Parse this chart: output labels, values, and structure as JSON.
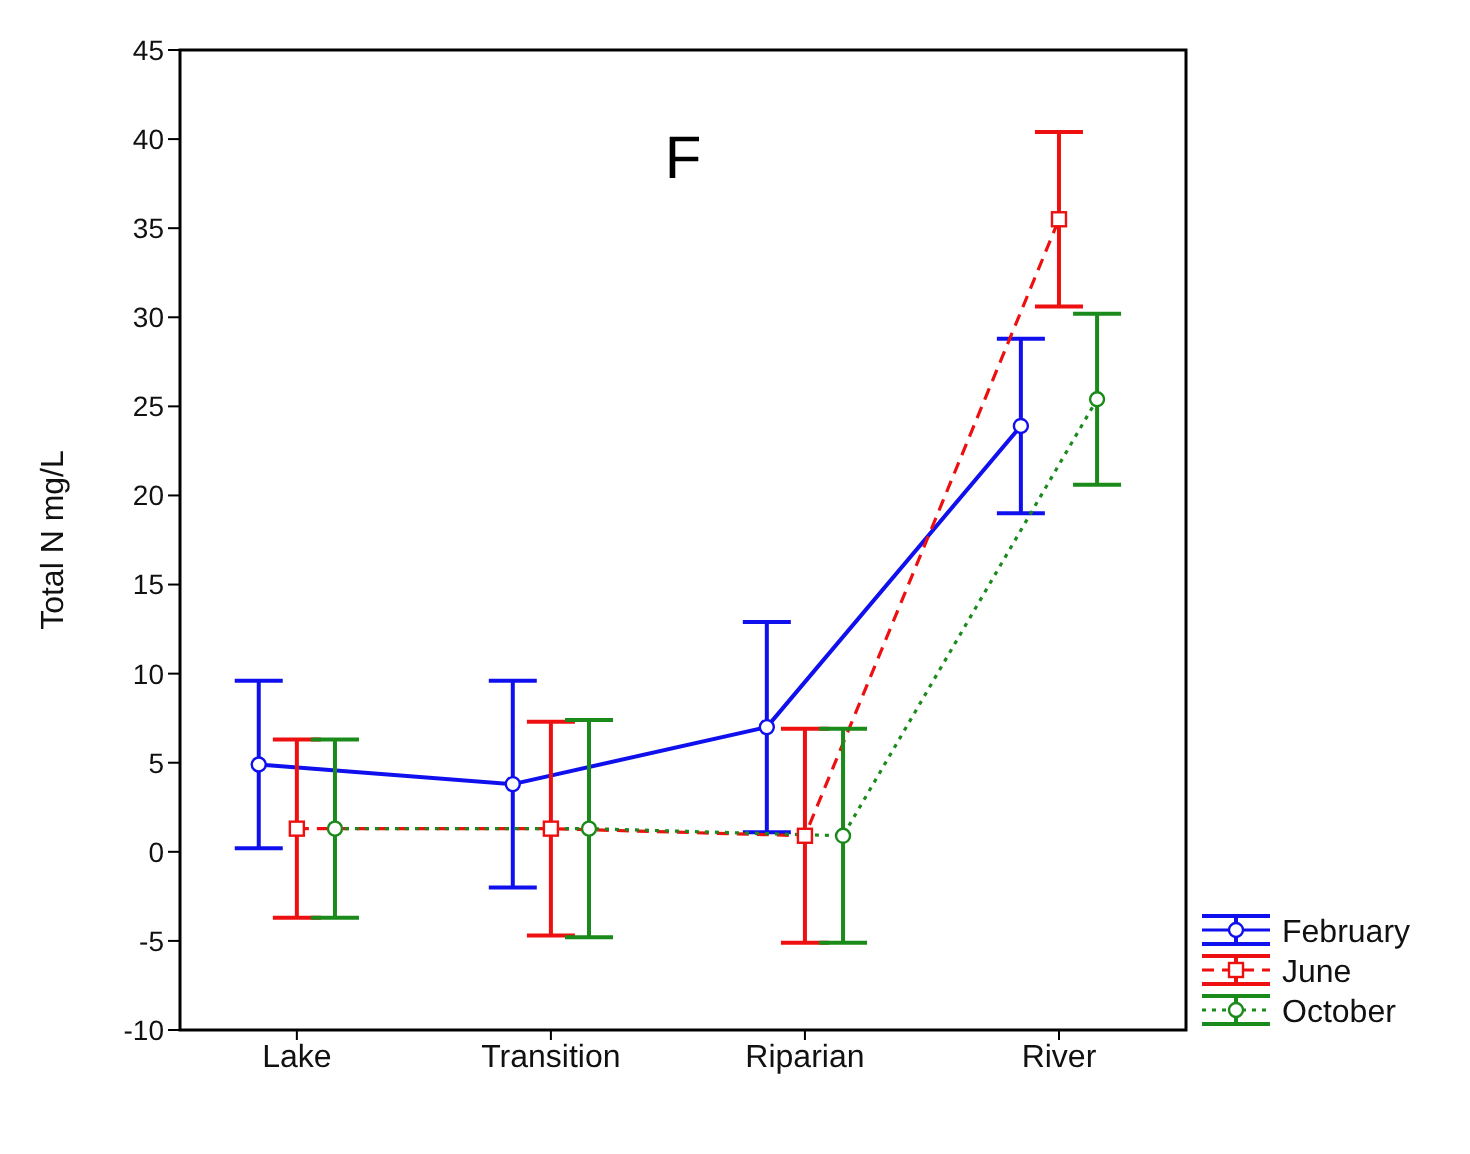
{
  "chart_data": {
    "type": "line",
    "title": "F",
    "ylabel": "Total N mg/L",
    "categories": [
      "Lake",
      "Transition",
      "Riparian",
      "River"
    ],
    "ylim": [
      -10,
      45
    ],
    "yticks": [
      -10,
      -5,
      0,
      5,
      10,
      15,
      20,
      25,
      30,
      35,
      40,
      45
    ],
    "legend": "bottom right",
    "marker": "circle",
    "series": [
      {
        "name": "February",
        "color": "#1010ee",
        "line_style": "solid",
        "values": [
          4.9,
          3.8,
          7.0,
          23.9
        ],
        "errors": [
          4.7,
          5.8,
          5.9,
          4.9
        ]
      },
      {
        "name": "June",
        "color": "#ee1010",
        "line_style": "dashed",
        "marker": "square",
        "values": [
          1.3,
          1.3,
          0.9,
          35.5
        ],
        "errors": [
          5.0,
          6.0,
          6.0,
          4.9
        ]
      },
      {
        "name": "October",
        "color": "#1a8a1a",
        "line_style": "dotted",
        "values": [
          1.3,
          1.3,
          0.9,
          25.4
        ],
        "errors": [
          5.0,
          6.1,
          6.0,
          4.8
        ]
      }
    ]
  }
}
